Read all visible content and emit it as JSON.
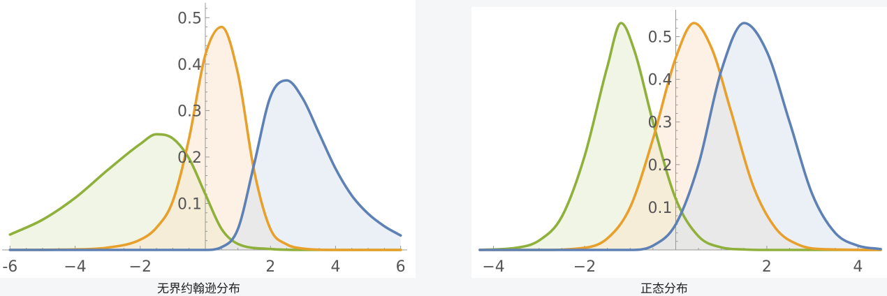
{
  "chart_data": [
    {
      "type": "area",
      "title": "",
      "caption": "无界约翰逊分布",
      "xlabel": "",
      "ylabel": "",
      "xlim": [
        -6.2,
        6.2
      ],
      "ylim": [
        0,
        0.52
      ],
      "x_ticks": [
        -6,
        -4,
        -2,
        2,
        4,
        6
      ],
      "x_tick_labels": [
        "-6",
        "−4",
        "−2",
        "2",
        "4",
        "6"
      ],
      "y_ticks": [
        0.1,
        0.2,
        0.3,
        0.4,
        0.5
      ],
      "y_tick_labels": [
        "0.1",
        "0.2",
        "0.3",
        "0.4",
        "0.5"
      ],
      "grid": false,
      "series": [
        {
          "color": "#8fb03a",
          "fill": "#e3ecd0",
          "x": [
            -6,
            -5,
            -4,
            -3,
            -2,
            -1.5,
            -1,
            -0.5,
            0,
            0.5,
            1,
            2,
            3,
            4,
            6
          ],
          "y": [
            0.033,
            0.065,
            0.112,
            0.172,
            0.228,
            0.249,
            0.24,
            0.197,
            0.12,
            0.045,
            0.013,
            0.002,
            0,
            0,
            0
          ]
        },
        {
          "color": "#e8a02c",
          "fill": "#fbe6cf",
          "x": [
            -6,
            -4,
            -3,
            -2,
            -1.5,
            -1,
            -0.5,
            0,
            0.5,
            1,
            1.5,
            2,
            2.5,
            3,
            4,
            6
          ],
          "y": [
            0,
            0.001,
            0.005,
            0.022,
            0.048,
            0.105,
            0.24,
            0.42,
            0.48,
            0.38,
            0.17,
            0.045,
            0.012,
            0.003,
            0,
            0
          ]
        },
        {
          "color": "#5e81b5",
          "fill": "#dae2ef",
          "x": [
            -6,
            -2,
            0,
            0.5,
            1,
            1.5,
            2,
            2.5,
            3,
            3.5,
            4,
            4.5,
            5,
            5.5,
            6
          ],
          "y": [
            0,
            0,
            0,
            0.006,
            0.045,
            0.185,
            0.33,
            0.365,
            0.325,
            0.25,
            0.175,
            0.117,
            0.078,
            0.051,
            0.031
          ]
        }
      ]
    },
    {
      "type": "area",
      "title": "",
      "caption": "正态分布",
      "xlabel": "",
      "ylabel": "",
      "xlim": [
        -4.3,
        4.5
      ],
      "ylim": [
        0,
        0.55
      ],
      "x_ticks": [
        -4,
        -2,
        2,
        4
      ],
      "x_tick_labels": [
        "−4",
        "−2",
        "2",
        "4"
      ],
      "y_ticks": [
        0.1,
        0.2,
        0.3,
        0.4,
        0.5
      ],
      "y_tick_labels": [
        "0.1",
        "0.2",
        "0.3",
        "0.4",
        "0.5"
      ],
      "grid": false,
      "series": [
        {
          "color": "#8fb03a",
          "fill": "#e3ecd0",
          "x": [
            -4.3,
            -3.5,
            -3,
            -2.5,
            -2,
            -1.5,
            -1.2,
            -0.9,
            -0.5,
            0,
            0.5,
            1,
            1.5,
            2,
            3,
            4.5
          ],
          "y": [
            0,
            0.005,
            0.022,
            0.078,
            0.22,
            0.43,
            0.532,
            0.465,
            0.3,
            0.12,
            0.032,
            0.006,
            0.001,
            0,
            0,
            0
          ]
        },
        {
          "color": "#e8a02c",
          "fill": "#fbe6cf",
          "x": [
            -4.3,
            -3,
            -2,
            -1.5,
            -1,
            -0.5,
            0,
            0.4,
            0.8,
            1.2,
            1.7,
            2.2,
            2.7,
            3.2,
            4.5
          ],
          "y": [
            0,
            0,
            0.005,
            0.027,
            0.1,
            0.26,
            0.45,
            0.532,
            0.47,
            0.33,
            0.15,
            0.05,
            0.012,
            0.002,
            0
          ]
        },
        {
          "color": "#5e81b5",
          "fill": "#dae2ef",
          "x": [
            -4.3,
            -1,
            -0.5,
            0,
            0.5,
            1,
            1.5,
            2,
            2.5,
            3,
            3.5,
            4,
            4.5
          ],
          "y": [
            0,
            0,
            0.01,
            0.06,
            0.2,
            0.42,
            0.532,
            0.465,
            0.3,
            0.13,
            0.04,
            0.01,
            0.002
          ]
        }
      ]
    }
  ]
}
